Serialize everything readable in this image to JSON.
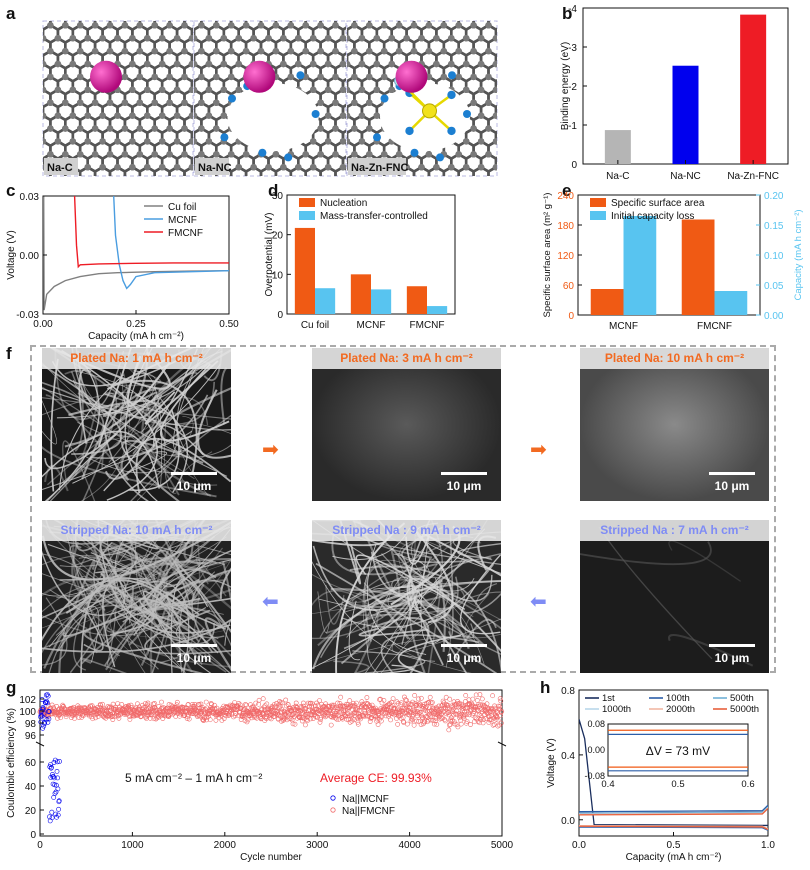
{
  "panels": {
    "a": "a",
    "b": "b",
    "c": "c",
    "d": "d",
    "e": "e",
    "f": "f",
    "g": "g",
    "h": "h"
  },
  "panel_a": {
    "tiles": [
      "Na-C",
      "Na-NC",
      "Na-Zn-FNC"
    ]
  },
  "colors": {
    "orange": "#f05a14",
    "blue": "#58c4f0",
    "red": "#ee1c25",
    "darkblue": "#0000ee",
    "grey": "#b5b5b5",
    "plated": "#f26a21",
    "stripped": "#7f8cf5",
    "pink": "#f06a6a"
  },
  "chart_data": [
    {
      "id": "b",
      "type": "bar",
      "categories": [
        "Na-C",
        "Na-NC",
        "Na-Zn-FNC"
      ],
      "values": [
        -0.87,
        -2.52,
        -3.83
      ],
      "ylabel": "Binding energy (eV)",
      "yticks": [
        "0",
        "-1",
        "-2",
        "-3",
        "-4"
      ],
      "ylim": [
        0,
        -4
      ]
    },
    {
      "id": "c",
      "type": "line",
      "xlabel": "Capacity (mA h cm⁻²)",
      "ylabel": "Voltage (V)",
      "xlim": [
        0,
        0.5
      ],
      "ylim": [
        -0.03,
        0.03
      ],
      "xticks": [
        "0.00",
        "0.25",
        "0.50"
      ],
      "yticks": [
        "0.03",
        "0.00",
        "-0.03"
      ],
      "legend": "top-right",
      "series": [
        {
          "name": "Cu foil",
          "color": "#808080",
          "points": [
            [
              0.002,
              0.03
            ],
            [
              0.003,
              -0.028
            ],
            [
              0.01,
              -0.02
            ],
            [
              0.03,
              -0.016
            ],
            [
              0.06,
              -0.013
            ],
            [
              0.1,
              -0.011
            ],
            [
              0.15,
              -0.0095
            ],
            [
              0.2,
              -0.009
            ],
            [
              0.3,
              -0.0085
            ],
            [
              0.4,
              -0.0082
            ],
            [
              0.5,
              -0.008
            ]
          ]
        },
        {
          "name": "MCNF",
          "color": "#4a9de0",
          "points": [
            [
              0.19,
              0.03
            ],
            [
              0.195,
              0.01
            ],
            [
              0.205,
              -0.005
            ],
            [
              0.215,
              -0.013
            ],
            [
              0.225,
              -0.017
            ],
            [
              0.235,
              -0.015
            ],
            [
              0.25,
              -0.011
            ],
            [
              0.3,
              -0.009
            ],
            [
              0.4,
              -0.0085
            ],
            [
              0.5,
              -0.008
            ]
          ]
        },
        {
          "name": "FMCNF",
          "color": "#ee1c25",
          "points": [
            [
              0.085,
              0.03
            ],
            [
              0.09,
              0.005
            ],
            [
              0.095,
              -0.006
            ],
            [
              0.1,
              -0.005
            ],
            [
              0.15,
              -0.0045
            ],
            [
              0.25,
              -0.0042
            ],
            [
              0.35,
              -0.004
            ],
            [
              0.5,
              -0.004
            ]
          ]
        }
      ]
    },
    {
      "id": "d",
      "type": "bar",
      "categories": [
        "Cu foil",
        "MCNF",
        "FMCNF"
      ],
      "ylabel": "Overpotential (mV)",
      "ylim": [
        0,
        30
      ],
      "yticks": [
        "0",
        "10",
        "20",
        "30"
      ],
      "legend": "top-right",
      "series": [
        {
          "name": "Nucleation",
          "color": "#f05a14",
          "values": [
            21.7,
            10.0,
            7.0
          ]
        },
        {
          "name": "Mass-transfer-controlled",
          "color": "#58c4f0",
          "values": [
            6.5,
            6.2,
            2.0
          ]
        }
      ]
    },
    {
      "id": "e",
      "type": "bar",
      "categories": [
        "MCNF",
        "FMCNF"
      ],
      "ylabel": "Specific surface area (m² g⁻¹)",
      "y2label": "Capacity (mA h cm⁻²)",
      "ylim": [
        0,
        240
      ],
      "y2lim": [
        0,
        0.2
      ],
      "yticks": [
        "0",
        "60",
        "120",
        "180",
        "240"
      ],
      "y2ticks": [
        "0.00",
        "0.05",
        "0.10",
        "0.15",
        "0.20"
      ],
      "legend": "top-right",
      "series": [
        {
          "name": "Specific surface area",
          "color": "#f05a14",
          "axis": "left",
          "values": [
            52,
            191
          ]
        },
        {
          "name": "Initial capacity loss",
          "color": "#58c4f0",
          "axis": "right",
          "values": [
            0.165,
            0.04
          ]
        }
      ]
    },
    {
      "id": "g",
      "type": "scatter",
      "xlabel": "Cycle number",
      "ylabel": "Coulombic efficiency (%)",
      "xlim": [
        0,
        5000
      ],
      "xticks": [
        "0",
        "1000",
        "2000",
        "3000",
        "4000",
        "5000"
      ],
      "yticks_upper": [
        "96",
        "98",
        "100",
        "102"
      ],
      "yticks_lower": [
        "0",
        "20",
        "40",
        "60"
      ],
      "annotation": "5 mA cm⁻² – 1 mA h cm⁻²",
      "average_ce": "Average CE: 99.93%",
      "series": [
        {
          "name": "Na||MCNF",
          "color": "#0000ee"
        },
        {
          "name": "Na||FMCNF",
          "color": "#f06a6a"
        }
      ]
    },
    {
      "id": "h",
      "type": "line",
      "xlabel": "Capacity (mA h cm⁻²)",
      "ylabel": "Voltage (V)",
      "xlim": [
        0,
        1.0
      ],
      "ylim": [
        -0.1,
        0.8
      ],
      "xticks": [
        "0.0",
        "0.5",
        "1.0"
      ],
      "yticks": [
        "0.0",
        "0.4",
        "0.8"
      ],
      "inset": {
        "xticks": [
          "0.4",
          "0.5",
          "0.6"
        ],
        "yticks": [
          "0.08",
          "0.00",
          "-0.08"
        ],
        "label": "ΔV = 73 mV"
      },
      "series": [
        {
          "name": "1st",
          "color": "#1a2e5e"
        },
        {
          "name": "100th",
          "color": "#2c5ea8"
        },
        {
          "name": "500th",
          "color": "#6fb0d6"
        },
        {
          "name": "1000th",
          "color": "#b9d7ea"
        },
        {
          "name": "2000th",
          "color": "#f2b8a4"
        },
        {
          "name": "5000th",
          "color": "#e8603c"
        }
      ]
    }
  ],
  "panel_f": {
    "images": [
      {
        "caption": "Plated Na: 1 mA h cm⁻²",
        "kind": "plated"
      },
      {
        "caption": "Plated Na: 3 mA h cm⁻²",
        "kind": "plated"
      },
      {
        "caption": "Plated Na: 10 mA h cm⁻²",
        "kind": "plated"
      },
      {
        "caption": "Stripped Na: 10 mA h cm⁻²",
        "kind": "stripped"
      },
      {
        "caption": "Stripped Na : 9 mA h cm⁻²",
        "kind": "stripped"
      },
      {
        "caption": "Stripped Na : 7 mA h cm⁻²",
        "kind": "stripped"
      }
    ],
    "scalebar": "10 μm"
  }
}
